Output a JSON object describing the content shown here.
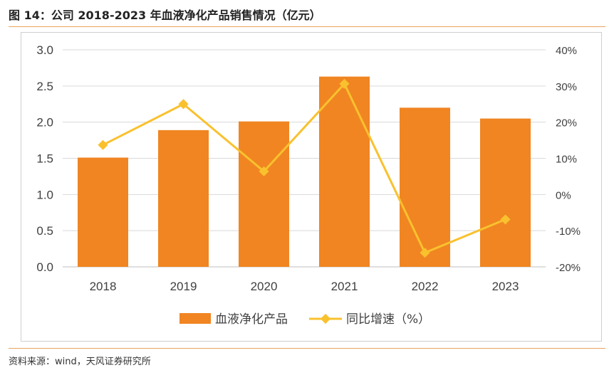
{
  "header": {
    "title": "图 14：公司 2018-2023 年血液净化产品销售情况（亿元）"
  },
  "footer": {
    "source": "资料来源：wind，天风证券研究所"
  },
  "colors": {
    "bar": "#F08522",
    "line": "#F9C12E",
    "grid": "#d9d9d9",
    "rule": "#e9a25c"
  },
  "chart_data": {
    "type": "bar",
    "categories": [
      "2018",
      "2019",
      "2020",
      "2021",
      "2022",
      "2023"
    ],
    "series": [
      {
        "name": "血液净化产品",
        "type": "bar",
        "axis": "left",
        "values": [
          1.51,
          1.89,
          2.01,
          2.63,
          2.2,
          2.05
        ]
      },
      {
        "name": "同比增速（%）",
        "type": "line",
        "axis": "right",
        "values": [
          13.7,
          25.0,
          6.4,
          30.6,
          -16.1,
          -6.9
        ]
      }
    ],
    "y_left": {
      "min": 0,
      "max": 3,
      "ticks": [
        "0.0",
        "0.5",
        "1.0",
        "1.5",
        "2.0",
        "2.5",
        "3.0"
      ]
    },
    "y_right": {
      "min": -20,
      "max": 40,
      "ticks": [
        "-20%",
        "-10%",
        "0%",
        "10%",
        "20%",
        "30%",
        "40%"
      ]
    },
    "grid": true,
    "legend": "bottom"
  }
}
